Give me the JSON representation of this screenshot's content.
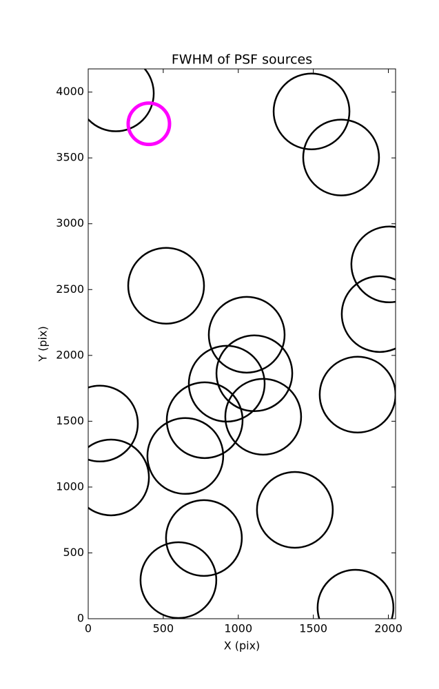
{
  "chart_data": {
    "type": "scatter",
    "title": "FWHM of PSF sources",
    "xlabel": "X (pix)",
    "ylabel": "Y (pix)",
    "xlim": [
      0,
      2048
    ],
    "ylim": [
      0,
      4176
    ],
    "xticks": [
      0,
      500,
      1000,
      1500,
      2000
    ],
    "yticks": [
      0,
      500,
      1000,
      1500,
      2000,
      2500,
      3000,
      3500,
      4000
    ],
    "grid": false,
    "series": [
      {
        "color": "#000000",
        "marker": "open-circle",
        "marker_size": 110,
        "line_width": 2.5,
        "x": [
          184,
          1488,
          1685,
          2006,
          1942,
          519,
          1056,
          1107,
          923,
          1795,
          78,
          776,
          1166,
          647,
          152,
          1377,
          771,
          601,
          1781
        ],
        "values": [
          3990,
          3853,
          3503,
          2691,
          2314,
          2529,
          2157,
          1864,
          1785,
          1702,
          1482,
          1508,
          1534,
          1236,
          1073,
          827,
          613,
          293,
          84
        ]
      },
      {
        "color": "#ff00ff",
        "marker": "open-circle",
        "marker_size": 60,
        "line_width": 5,
        "x": [
          404
        ],
        "values": [
          3759
        ]
      }
    ]
  }
}
